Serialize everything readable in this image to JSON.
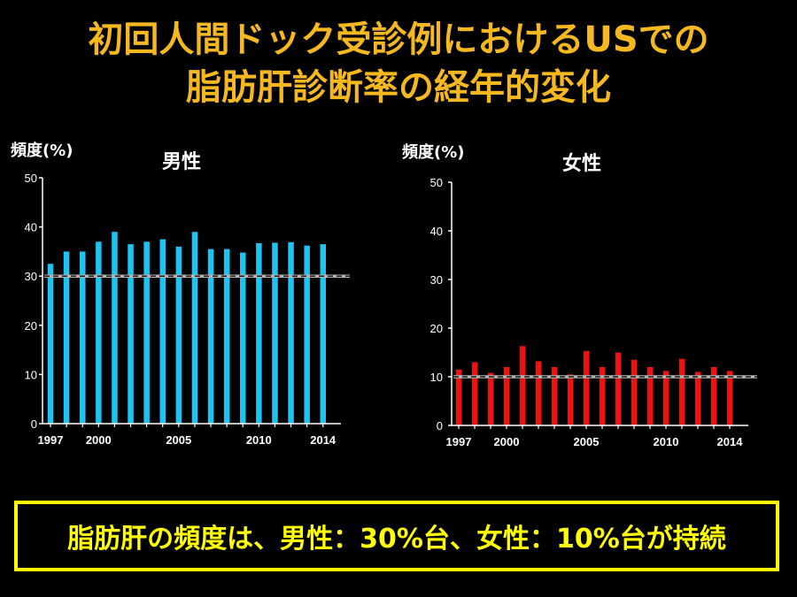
{
  "title": {
    "line1": "初回人間ドック受診例におけるUSでの",
    "line2": "脂肪肝診断率の経年的変化"
  },
  "summary": "脂肪肝の頻度は、男性：30%台、女性：10%台が持続",
  "colors": {
    "title": "#f5b81e",
    "male_bar": "#1cc4ef",
    "female_bar": "#ee1111",
    "reference_line": "#b4b4b4",
    "summary": "#ffff00"
  },
  "chart_data": [
    {
      "type": "bar",
      "title": "男性",
      "ylabel": "頻度(%)",
      "xlabel": "",
      "ylim": [
        0,
        50
      ],
      "yticks": [
        0,
        10,
        20,
        30,
        40,
        50
      ],
      "x": [
        1997,
        1998,
        1999,
        2000,
        2001,
        2002,
        2003,
        2004,
        2005,
        2006,
        2007,
        2008,
        2009,
        2010,
        2011,
        2012,
        2013,
        2014
      ],
      "xtick_labels": [
        "1997",
        "2000",
        "2005",
        "2010",
        "2014"
      ],
      "values": [
        32.5,
        35,
        35,
        37,
        39,
        36.5,
        37,
        37.5,
        36,
        39,
        35.5,
        35.5,
        34.8,
        36.7,
        36.8,
        36.9,
        36.2,
        36.5
      ],
      "reference_line": 30,
      "color": "#1cc4ef"
    },
    {
      "type": "bar",
      "title": "女性",
      "ylabel": "頻度(%)",
      "xlabel": "",
      "ylim": [
        0,
        50
      ],
      "yticks": [
        0,
        10,
        20,
        30,
        40,
        50
      ],
      "x": [
        1997,
        1998,
        1999,
        2000,
        2001,
        2002,
        2003,
        2004,
        2005,
        2006,
        2007,
        2008,
        2009,
        2010,
        2011,
        2012,
        2013,
        2014
      ],
      "xtick_labels": [
        "1997",
        "2000",
        "2005",
        "2010",
        "2014"
      ],
      "values": [
        11.5,
        13,
        10.8,
        12,
        16.3,
        13.2,
        12,
        10.5,
        15.3,
        12,
        15,
        13.5,
        12,
        11.2,
        13.7,
        11,
        12,
        11.2
      ],
      "reference_line": 10,
      "color": "#ee1111"
    }
  ]
}
